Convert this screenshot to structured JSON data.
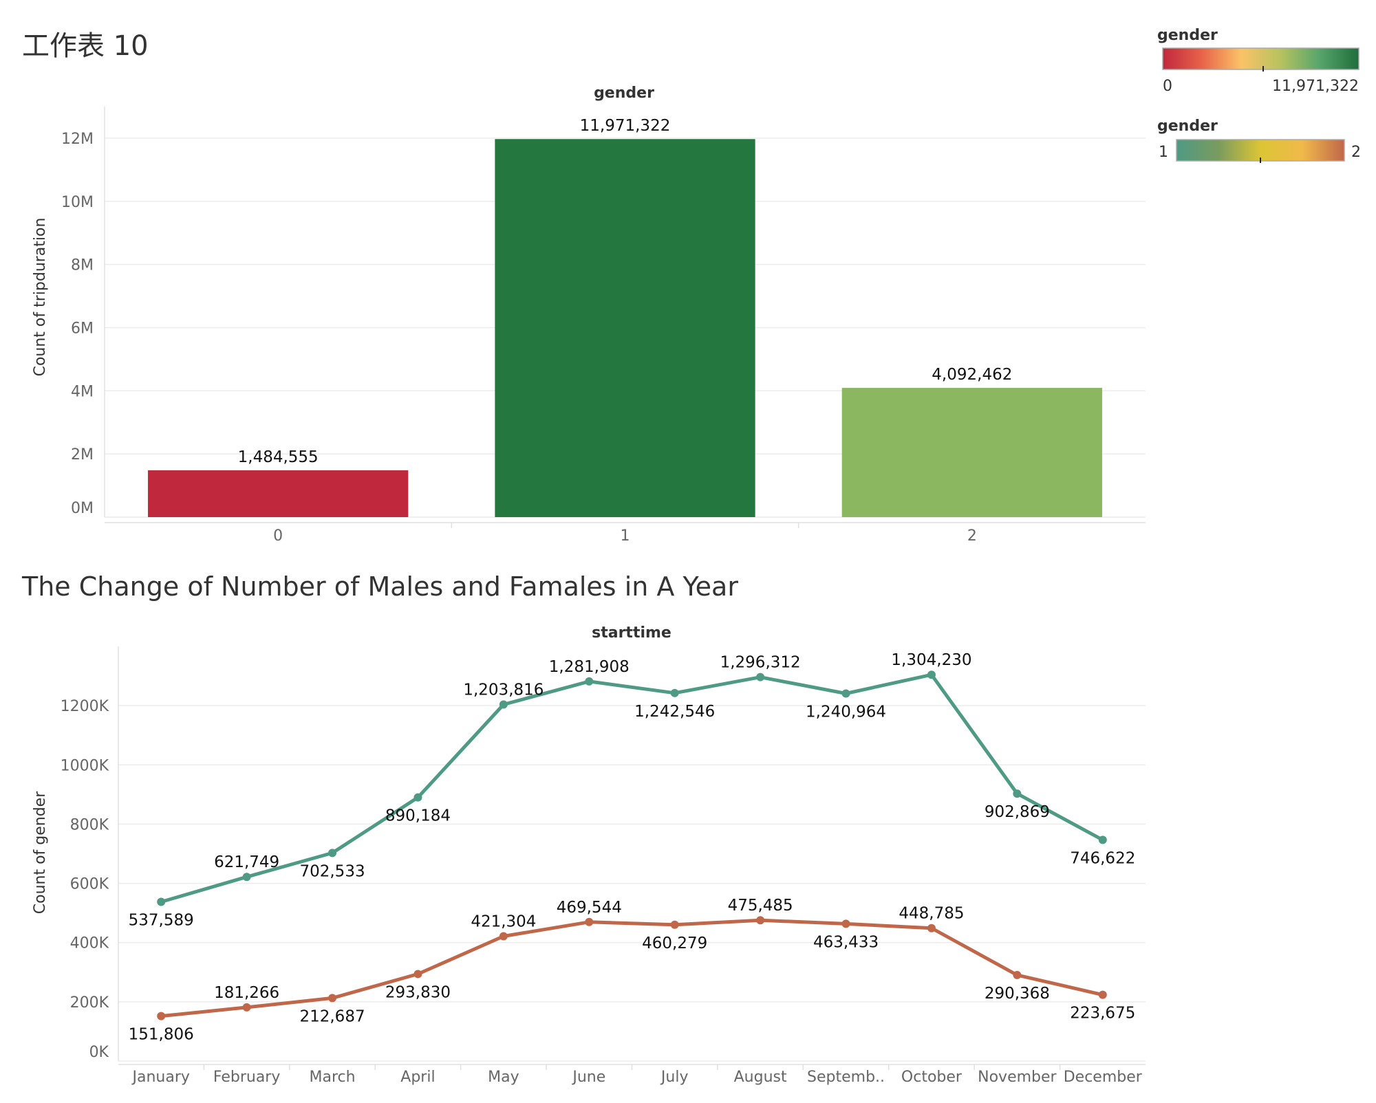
{
  "sheet_title": "工作表 10",
  "chart_data": [
    {
      "type": "bar",
      "header": "gender",
      "ylabel": "Count of tripduration",
      "categories": [
        "0",
        "1",
        "2"
      ],
      "values": [
        1484555,
        11971322,
        4092462
      ],
      "value_labels": [
        "1,484,555",
        "11,971,322",
        "4,092,462"
      ],
      "ylim": [
        0,
        13000000
      ],
      "y_ticks": [
        0,
        2000000,
        4000000,
        6000000,
        8000000,
        10000000,
        12000000
      ],
      "y_tick_labels": [
        "0M",
        "2M",
        "4M",
        "6M",
        "8M",
        "10M",
        "12M"
      ],
      "bar_colors": [
        "#c0283d",
        "#23773f",
        "#8ab760"
      ],
      "grid": true
    },
    {
      "type": "line",
      "title": "The Change of Number of Males and Famales in A Year",
      "header": "starttime",
      "ylabel": "Count of gender",
      "categories": [
        "January",
        "February",
        "March",
        "April",
        "May",
        "June",
        "July",
        "August",
        "Septemb..",
        "October",
        "November",
        "December"
      ],
      "series": [
        {
          "values": [
            537589,
            621749,
            702533,
            890184,
            1203816,
            1281908,
            1242546,
            1296312,
            1240964,
            1304230,
            902869,
            746622
          ],
          "value_labels": [
            "537,589",
            "621,749",
            "702,533",
            "890,184",
            "1,203,816",
            "1,281,908",
            "1,242,546",
            "1,296,312",
            "1,240,964",
            "1,304,230",
            "902,869",
            "746,622"
          ],
          "color": "#4e9a84",
          "label_pos": [
            "below",
            "above",
            "below",
            "below",
            "above",
            "above",
            "below",
            "above",
            "below",
            "above",
            "below",
            "below"
          ]
        },
        {
          "values": [
            151806,
            181266,
            212687,
            293830,
            421304,
            469544,
            460279,
            475485,
            463433,
            448785,
            290368,
            223675
          ],
          "value_labels": [
            "151,806",
            "181,266",
            "212,687",
            "293,830",
            "421,304",
            "469,544",
            "460,279",
            "475,485",
            "463,433",
            "448,785",
            "290,368",
            "223,675"
          ],
          "color": "#c0674a",
          "label_pos": [
            "below",
            "above",
            "below",
            "below",
            "above",
            "above",
            "below",
            "above",
            "below",
            "above",
            "below",
            "below"
          ]
        }
      ],
      "ylim": [
        0,
        1400000
      ],
      "y_ticks": [
        0,
        200000,
        400000,
        600000,
        800000,
        1000000,
        1200000
      ],
      "y_tick_labels": [
        "0K",
        "200K",
        "400K",
        "600K",
        "800K",
        "1000K",
        "1200K"
      ],
      "grid": true
    }
  ],
  "legends": [
    {
      "title": "gender",
      "min_label": "0",
      "max_label": "11,971,322",
      "stops": [
        "#c0283d",
        "#e8634a",
        "#fbc267",
        "#b7c35f",
        "#57a56c",
        "#1f6e3b"
      ]
    },
    {
      "title": "gender",
      "min_label": "1",
      "max_label": "2",
      "stops": [
        "#4e9a84",
        "#7a9b5f",
        "#dcc535",
        "#f0b94a",
        "#c0674a"
      ]
    }
  ]
}
